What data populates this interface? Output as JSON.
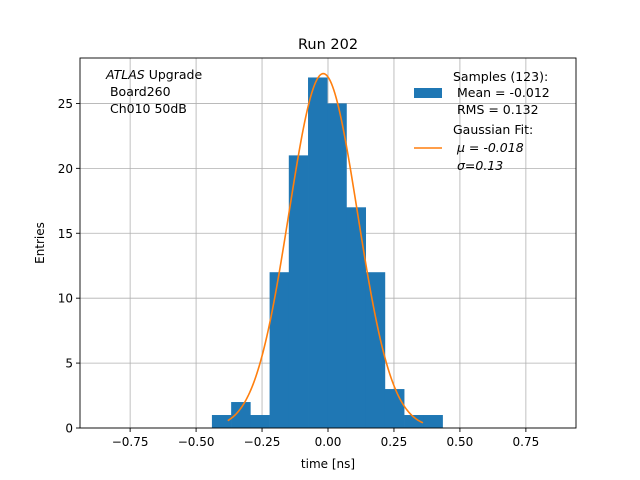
{
  "chart_data": {
    "type": "bar",
    "title": "Run 202",
    "xlabel": "time [ns]",
    "ylabel": "Entries",
    "xlim": [
      -0.94,
      0.94
    ],
    "ylim": [
      0,
      28.5
    ],
    "grid": true,
    "xticks": [
      -0.75,
      -0.5,
      -0.25,
      0.0,
      0.25,
      0.5,
      0.75
    ],
    "xtick_labels": [
      "−0.75",
      "−0.50",
      "−0.25",
      "0.00",
      "0.25",
      "0.50",
      "0.75"
    ],
    "yticks": [
      0,
      5,
      10,
      15,
      20,
      25
    ],
    "ytick_labels": [
      "0",
      "5",
      "10",
      "15",
      "20",
      "25"
    ],
    "annotation": {
      "italic": "ATLAS",
      "line1_rest": " Upgrade",
      "line2": " Board260",
      "line3": " Ch010 50dB"
    },
    "legend": {
      "placement": "top-right",
      "entries": [
        {
          "label": "Samples (123):",
          "sub": [
            " Mean = -0.012",
            " RMS = 0.132"
          ],
          "kind": "patch",
          "color": "#1f77b4"
        },
        {
          "label": "Gaussian Fit:",
          "sub": [
            " μ = -0.018",
            " σ=0.13"
          ],
          "kind": "line",
          "color": "#ff7f0e"
        }
      ]
    },
    "series": [
      {
        "kind": "histogram",
        "color": "#1f77b4",
        "bin_edges": [
          -0.44,
          -0.3671,
          -0.2943,
          -0.2214,
          -0.1486,
          -0.0757,
          -0.0029,
          0.07,
          0.1429,
          0.2157,
          0.2886,
          0.3614,
          0.4343
        ],
        "counts": [
          1,
          2,
          1,
          12,
          21,
          27,
          25,
          17,
          12,
          3,
          1,
          1
        ]
      },
      {
        "kind": "gaussian",
        "color": "#ff7f0e",
        "mu": -0.018,
        "sigma": 0.13,
        "amplitude": 27.3,
        "x_range": [
          -0.38,
          0.36
        ]
      }
    ]
  }
}
